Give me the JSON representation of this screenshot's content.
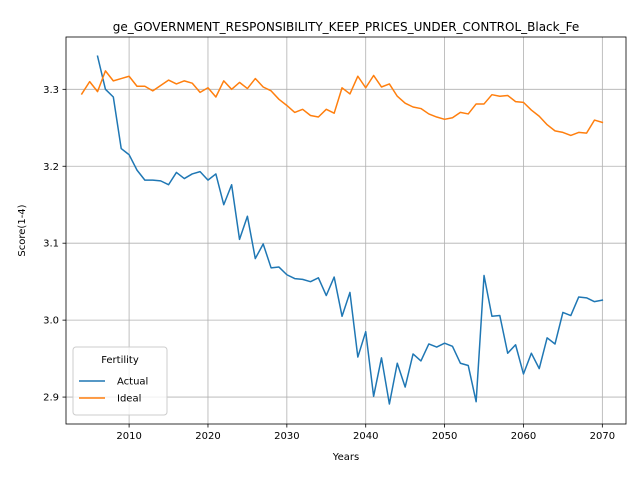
{
  "chart_data": {
    "type": "line",
    "title": "ge_GOVERNMENT_RESPONSIBILITY_KEEP_PRICES_UNDER_CONTROL_Black_Fe",
    "xlabel": "Years",
    "ylabel": "Score(1-4)",
    "xlim": [
      2002,
      2073
    ],
    "ylim": [
      2.865,
      3.368
    ],
    "xticks": [
      2010,
      2020,
      2030,
      2040,
      2050,
      2060,
      2070
    ],
    "yticks": [
      2.9,
      3.0,
      3.1,
      3.2,
      3.3
    ],
    "grid": true,
    "legend": {
      "title": "Fertility",
      "placement": "lower-left"
    },
    "series": [
      {
        "name": "Actual",
        "color": "#1f77b4",
        "x": [
          2006,
          2007,
          2008,
          2009,
          2010,
          2011,
          2012,
          2013,
          2014,
          2015,
          2016,
          2017,
          2018,
          2019,
          2020,
          2021,
          2022,
          2023,
          2024,
          2025,
          2026,
          2027,
          2028,
          2029,
          2030,
          2031,
          2032,
          2033,
          2034,
          2035,
          2036,
          2037,
          2038,
          2039,
          2040,
          2041,
          2042,
          2043,
          2044,
          2045,
          2046,
          2047,
          2048,
          2049,
          2050,
          2051,
          2052,
          2053,
          2054,
          2055,
          2056,
          2057,
          2058,
          2059,
          2060,
          2061,
          2062,
          2063,
          2064,
          2065,
          2066,
          2067,
          2068,
          2069,
          2070
        ],
        "y": [
          3.343,
          3.3,
          3.29,
          3.223,
          3.215,
          3.195,
          3.182,
          3.182,
          3.181,
          3.176,
          3.192,
          3.184,
          3.19,
          3.193,
          3.182,
          3.19,
          3.15,
          3.176,
          3.105,
          3.135,
          3.08,
          3.099,
          3.068,
          3.069,
          3.059,
          3.054,
          3.053,
          3.05,
          3.055,
          3.032,
          3.056,
          3.005,
          3.036,
          2.952,
          2.985,
          2.901,
          2.951,
          2.891,
          2.944,
          2.913,
          2.956,
          2.947,
          2.969,
          2.965,
          2.97,
          2.966,
          2.944,
          2.941,
          2.894,
          3.058,
          3.005,
          3.006,
          2.957,
          2.968,
          2.93,
          2.957,
          2.937,
          2.977,
          2.969,
          3.01,
          3.006,
          3.03,
          3.029,
          3.024,
          3.026
        ]
      },
      {
        "name": "Ideal",
        "color": "#ff7f0e",
        "x": [
          2004,
          2005,
          2006,
          2007,
          2008,
          2009,
          2010,
          2011,
          2012,
          2013,
          2014,
          2015,
          2016,
          2017,
          2018,
          2019,
          2020,
          2021,
          2022,
          2023,
          2024,
          2025,
          2026,
          2027,
          2028,
          2029,
          2030,
          2031,
          2032,
          2033,
          2034,
          2035,
          2036,
          2037,
          2038,
          2039,
          2040,
          2041,
          2042,
          2043,
          2044,
          2045,
          2046,
          2047,
          2048,
          2049,
          2050,
          2051,
          2052,
          2053,
          2054,
          2055,
          2056,
          2057,
          2058,
          2059,
          2060,
          2061,
          2062,
          2063,
          2064,
          2065,
          2066,
          2067,
          2068,
          2069,
          2070
        ],
        "y": [
          3.294,
          3.31,
          3.297,
          3.324,
          3.311,
          3.314,
          3.317,
          3.304,
          3.304,
          3.298,
          3.305,
          3.312,
          3.307,
          3.311,
          3.308,
          3.296,
          3.302,
          3.29,
          3.311,
          3.3,
          3.309,
          3.301,
          3.314,
          3.303,
          3.298,
          3.287,
          3.279,
          3.27,
          3.274,
          3.266,
          3.264,
          3.274,
          3.269,
          3.302,
          3.294,
          3.317,
          3.302,
          3.318,
          3.303,
          3.307,
          3.291,
          3.282,
          3.277,
          3.275,
          3.268,
          3.264,
          3.261,
          3.263,
          3.27,
          3.268,
          3.281,
          3.281,
          3.293,
          3.291,
          3.292,
          3.284,
          3.283,
          3.273,
          3.265,
          3.254,
          3.246,
          3.244,
          3.24,
          3.244,
          3.243,
          3.26,
          3.257
        ]
      }
    ]
  }
}
